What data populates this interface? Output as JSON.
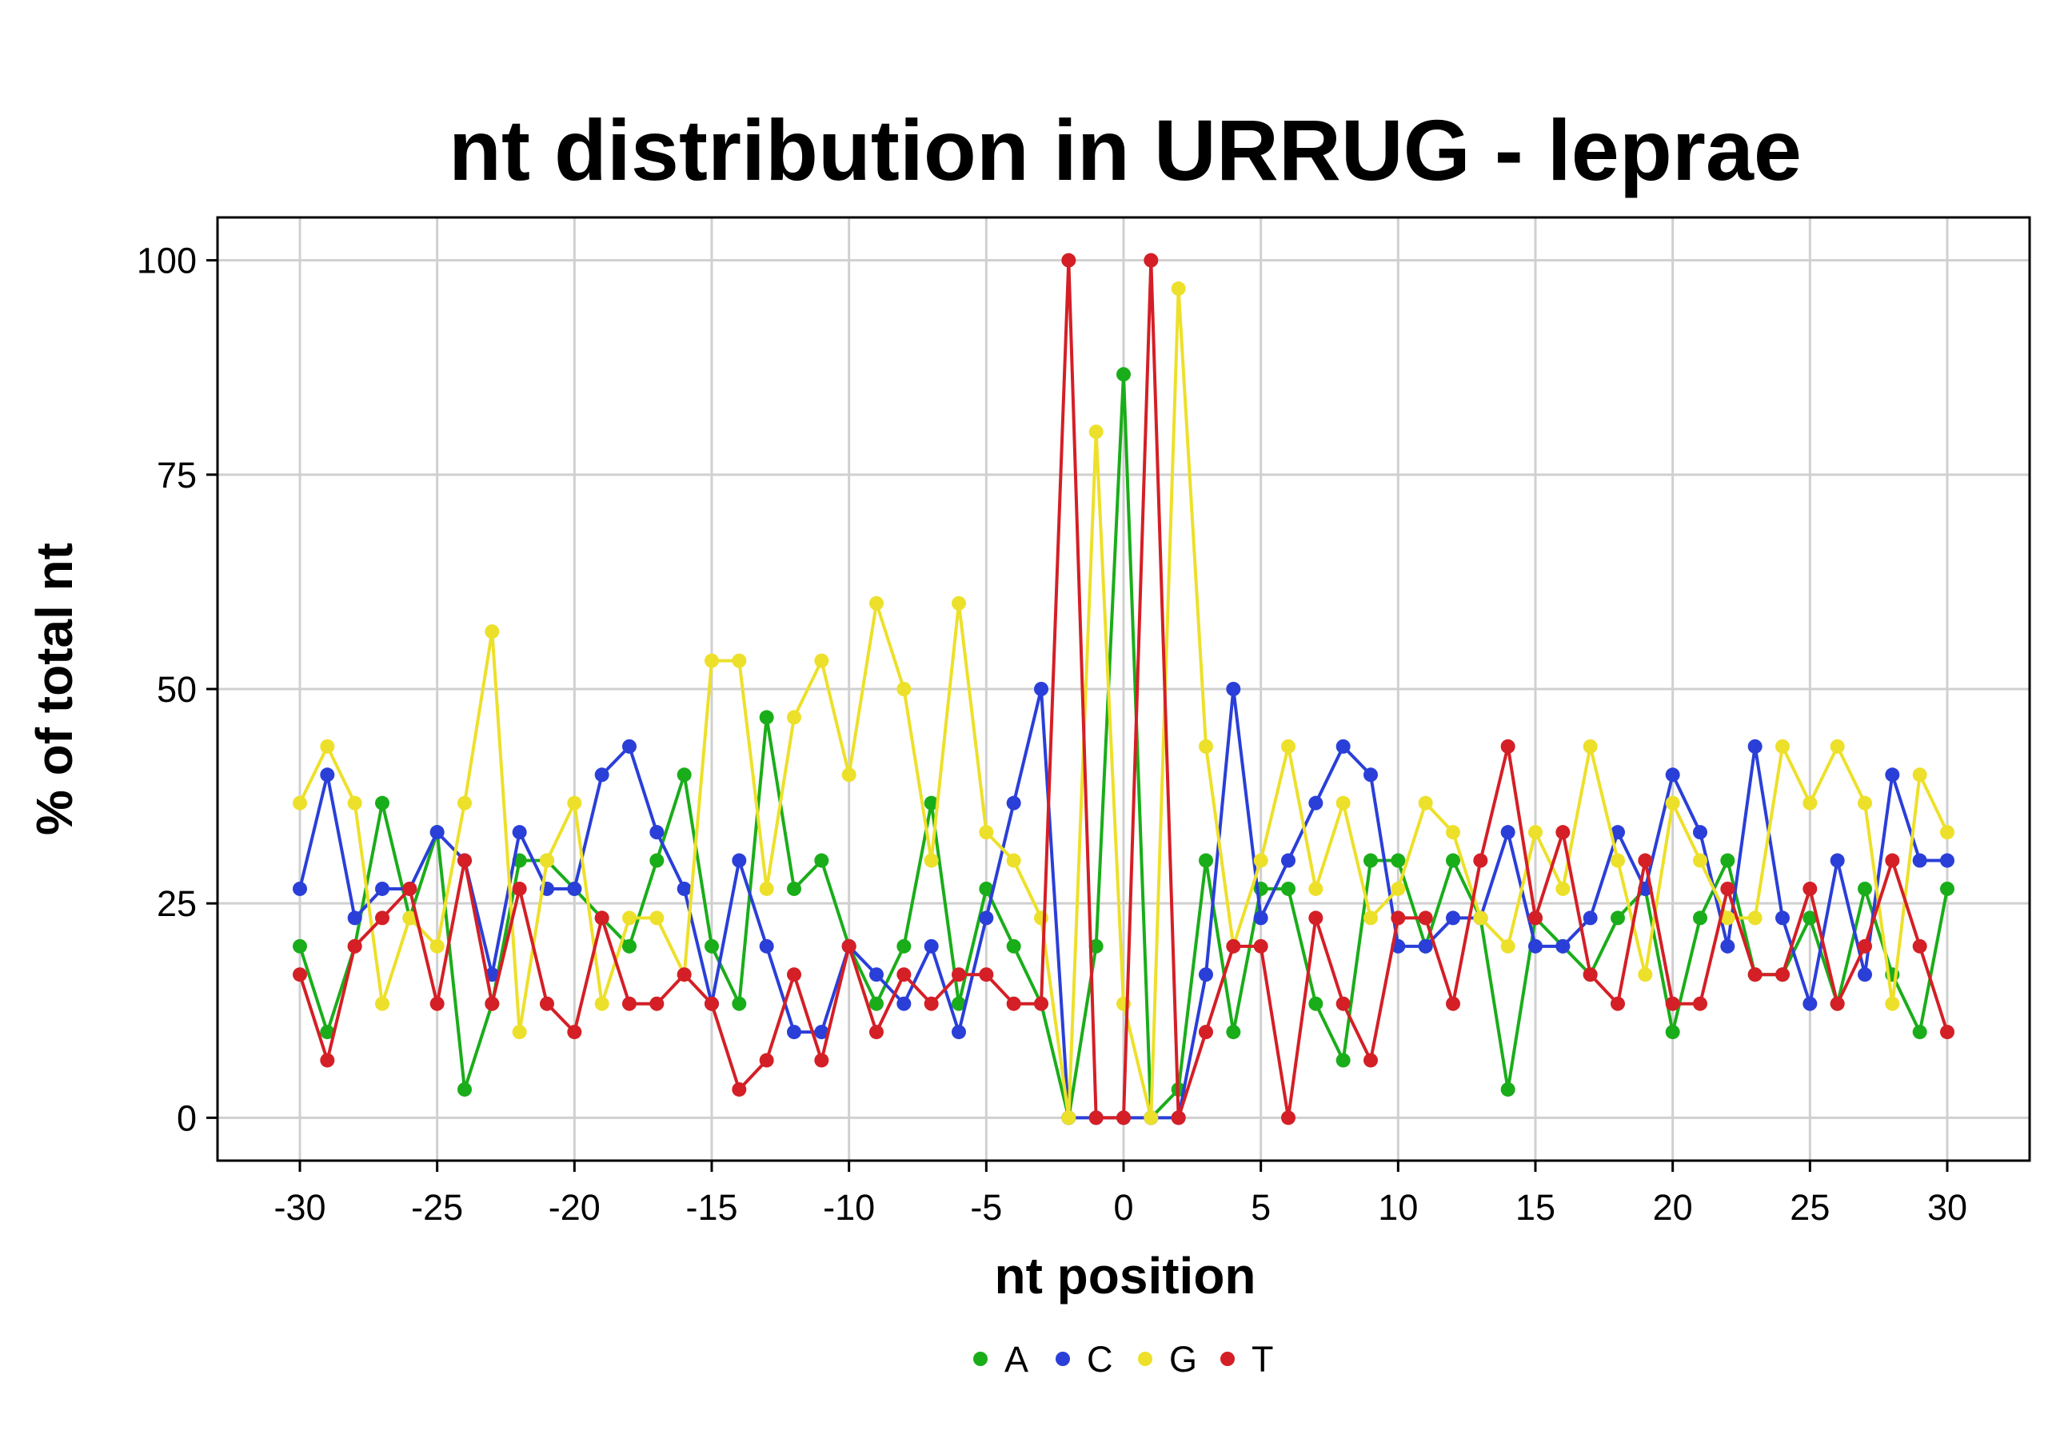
{
  "chart_data": {
    "type": "line",
    "title": "nt distribution in URRUG - leprae",
    "xlabel": "nt position",
    "ylabel": "% of total nt",
    "xlim": [
      -33,
      33
    ],
    "ylim": [
      -5,
      105
    ],
    "xticks": [
      -30,
      -25,
      -20,
      -15,
      -10,
      -5,
      0,
      5,
      10,
      15,
      20,
      25,
      30
    ],
    "yticks": [
      0,
      25,
      50,
      75,
      100
    ],
    "grid": true,
    "legend_position": "bottom",
    "x": [
      -30,
      -29,
      -28,
      -27,
      -26,
      -25,
      -24,
      -23,
      -22,
      -21,
      -20,
      -19,
      -18,
      -17,
      -16,
      -15,
      -14,
      -13,
      -12,
      -11,
      -10,
      -9,
      -8,
      -7,
      -6,
      -5,
      -4,
      -3,
      -2,
      -1,
      0,
      1,
      2,
      3,
      4,
      5,
      6,
      7,
      8,
      9,
      10,
      11,
      12,
      13,
      14,
      15,
      16,
      17,
      18,
      19,
      20,
      21,
      22,
      23,
      24,
      25,
      26,
      27,
      28,
      29,
      30
    ],
    "series": [
      {
        "name": "A",
        "color": "#1aad1a",
        "values": [
          20,
          10,
          20,
          36.7,
          23.3,
          33.3,
          3.3,
          13.3,
          30,
          30,
          26.7,
          23.3,
          20,
          30,
          40,
          20,
          13.3,
          46.7,
          26.7,
          30,
          20,
          13.3,
          20,
          36.7,
          13.3,
          26.7,
          20,
          13.3,
          0,
          20,
          86.7,
          0,
          3.3,
          30,
          10,
          26.7,
          26.7,
          13.3,
          6.7,
          30,
          30,
          20,
          30,
          23.3,
          3.3,
          23.3,
          20,
          16.7,
          23.3,
          26.7,
          10,
          23.3,
          30,
          16.7,
          16.7,
          23.3,
          13.3,
          26.7,
          16.7,
          10,
          26.7
        ]
      },
      {
        "name": "C",
        "color": "#2a3fd8",
        "values": [
          26.7,
          40,
          23.3,
          26.7,
          26.7,
          33.3,
          30,
          16.7,
          33.3,
          26.7,
          26.7,
          40,
          43.3,
          33.3,
          26.7,
          13.3,
          30,
          20,
          10,
          10,
          20,
          16.7,
          13.3,
          20,
          10,
          23.3,
          36.7,
          50,
          0,
          0,
          0,
          0,
          0,
          16.7,
          50,
          23.3,
          30,
          36.7,
          43.3,
          40,
          20,
          20,
          23.3,
          23.3,
          33.3,
          20,
          20,
          23.3,
          33.3,
          26.7,
          40,
          33.3,
          20,
          43.3,
          23.3,
          13.3,
          30,
          16.7,
          40,
          30,
          30
        ]
      },
      {
        "name": "G",
        "color": "#ede02a",
        "values": [
          36.7,
          43.3,
          36.7,
          13.3,
          23.3,
          20,
          36.7,
          56.7,
          10,
          30,
          36.7,
          13.3,
          23.3,
          23.3,
          16.7,
          53.3,
          53.3,
          26.7,
          46.7,
          53.3,
          40,
          60,
          50,
          30,
          60,
          33.3,
          30,
          23.3,
          0,
          80,
          13.3,
          0,
          96.7,
          43.3,
          20,
          30,
          43.3,
          26.7,
          36.7,
          23.3,
          26.7,
          36.7,
          33.3,
          23.3,
          20,
          33.3,
          26.7,
          43.3,
          30,
          16.7,
          36.7,
          30,
          23.3,
          23.3,
          43.3,
          36.7,
          43.3,
          36.7,
          13.3,
          40,
          33.3
        ]
      },
      {
        "name": "T",
        "color": "#d41f26",
        "values": [
          16.7,
          6.7,
          20,
          23.3,
          26.7,
          13.3,
          30,
          13.3,
          26.7,
          13.3,
          10,
          23.3,
          13.3,
          13.3,
          16.7,
          13.3,
          3.3,
          6.7,
          16.7,
          6.7,
          20,
          10,
          16.7,
          13.3,
          16.7,
          16.7,
          13.3,
          13.3,
          100,
          0,
          0,
          100,
          0,
          10,
          20,
          20,
          0,
          23.3,
          13.3,
          6.7,
          23.3,
          23.3,
          13.3,
          30,
          43.3,
          23.3,
          33.3,
          16.7,
          13.3,
          30,
          13.3,
          13.3,
          26.7,
          16.7,
          16.7,
          26.7,
          13.3,
          20,
          30,
          20,
          10
        ]
      }
    ]
  }
}
